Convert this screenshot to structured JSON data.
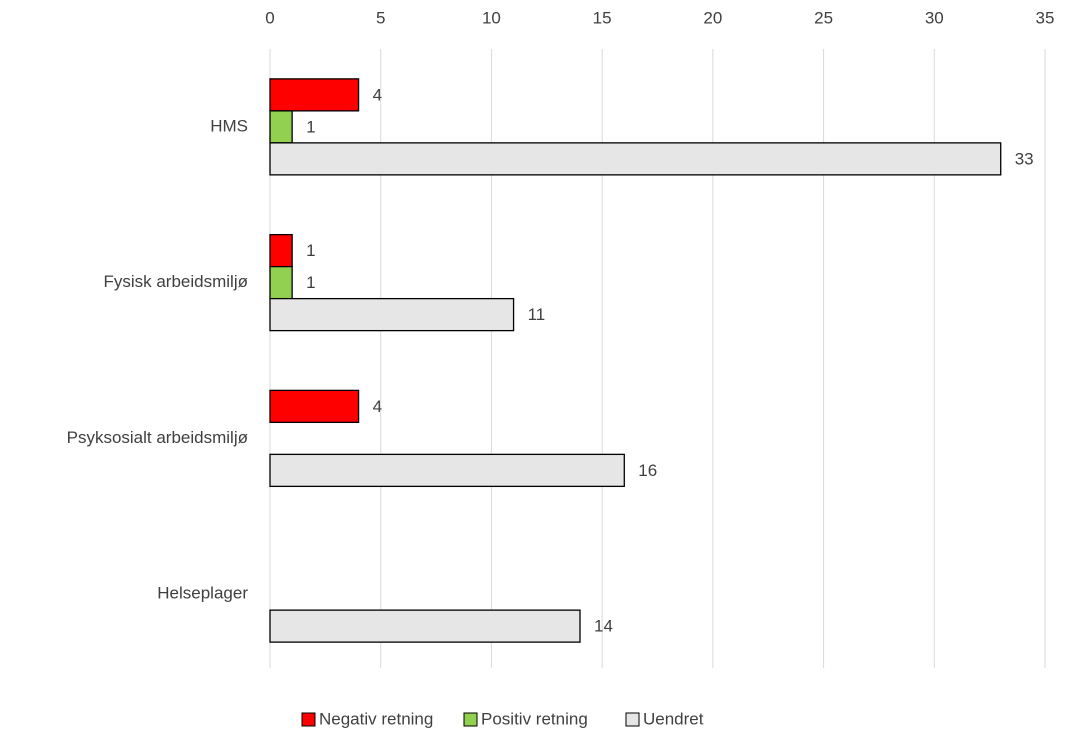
{
  "chart_data": {
    "type": "bar",
    "orientation": "horizontal",
    "categories": [
      "HMS",
      "Fysisk arbeidsmiljø",
      "Psyksosialt arbeidsmiljø",
      "Helseplager"
    ],
    "series": [
      {
        "name": "Negativ retning",
        "color": "#ff0000",
        "values": [
          4,
          1,
          4,
          null
        ]
      },
      {
        "name": "Positiv retning",
        "color": "#92d050",
        "values": [
          1,
          1,
          null,
          null
        ]
      },
      {
        "name": "Uendret",
        "color": "#e7e6e6",
        "values": [
          33,
          11,
          16,
          14
        ]
      }
    ],
    "xlim": [
      0,
      35
    ],
    "xticks": [
      0,
      5,
      10,
      15,
      20,
      25,
      30,
      35
    ],
    "grid": true,
    "legend": "bottom"
  }
}
